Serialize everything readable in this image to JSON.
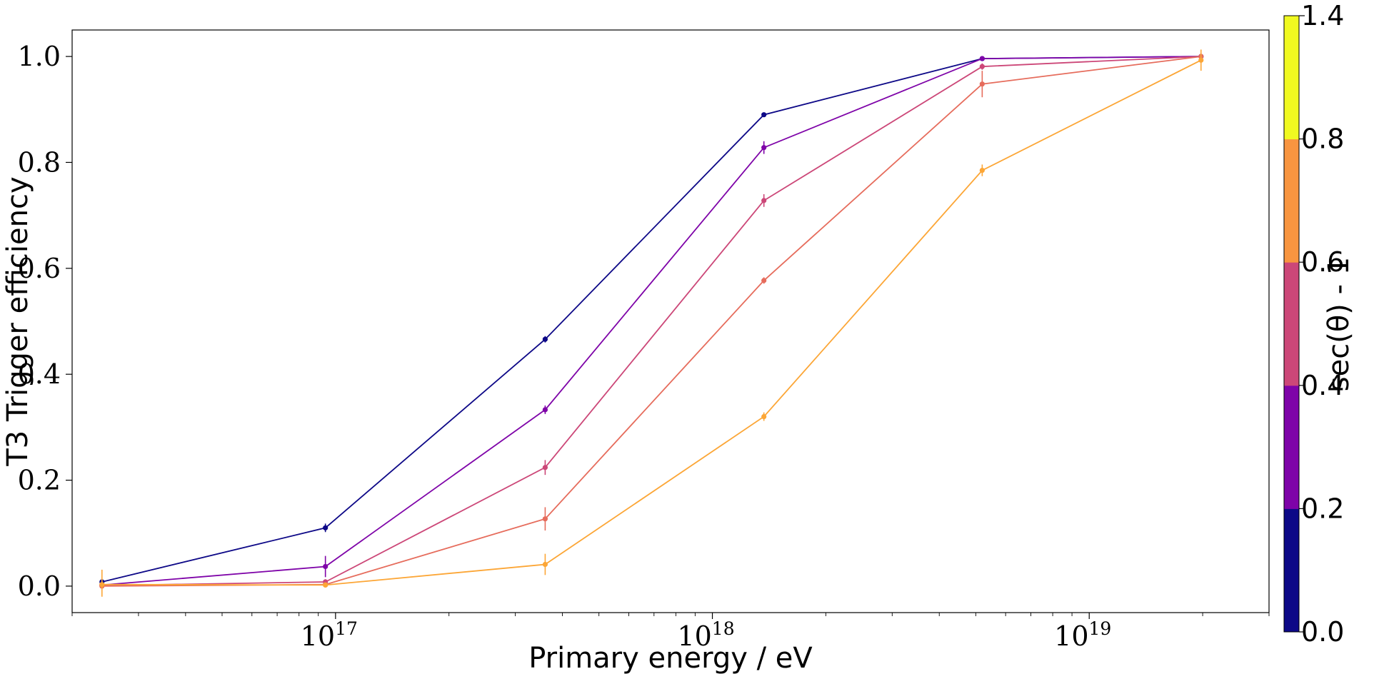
{
  "chart_data": {
    "type": "line",
    "title": "",
    "xlabel": "Primary energy / eV",
    "ylabel": "T3 Trigger efficiency",
    "xscale": "log",
    "xlim": [
      2e+16,
      3e+19
    ],
    "ylim": [
      -0.05,
      1.05
    ],
    "grid": false,
    "x": [
      2.4e+16,
      9.4e+16,
      3.6e+17,
      1.37e+18,
      5.2e+18,
      1.98e+19
    ],
    "x_ticks": [
      {
        "value": 1e+17,
        "base": "10",
        "exp": "17"
      },
      {
        "value": 1e+18,
        "base": "10",
        "exp": "18"
      },
      {
        "value": 1e+19,
        "base": "10",
        "exp": "19"
      }
    ],
    "y_ticks": [
      {
        "value": 0.0,
        "label": "0.0"
      },
      {
        "value": 0.2,
        "label": "0.2"
      },
      {
        "value": 0.4,
        "label": "0.4"
      },
      {
        "value": 0.6,
        "label": "0.6"
      },
      {
        "value": 0.8,
        "label": "0.8"
      },
      {
        "value": 1.0,
        "label": "1.0"
      }
    ],
    "series": [
      {
        "color": "#0d0887",
        "values": [
          0.008,
          0.11,
          0.466,
          0.89,
          0.996,
          1.0
        ],
        "errors": [
          0.003,
          0.008,
          0.006,
          0.004,
          0.002,
          0.001
        ]
      },
      {
        "color": "#7e03a8",
        "values": [
          0.002,
          0.037,
          0.333,
          0.828,
          0.996,
          1.0
        ],
        "errors": [
          0.002,
          0.02,
          0.008,
          0.012,
          0.003,
          0.001
        ]
      },
      {
        "color": "#cc4778",
        "values": [
          0.001,
          0.008,
          0.224,
          0.728,
          0.981,
          1.0
        ],
        "errors": [
          0.001,
          0.005,
          0.014,
          0.012,
          0.006,
          0.001
        ]
      },
      {
        "color": "#e66c5c",
        "values": [
          0.0,
          0.003,
          0.127,
          0.577,
          0.948,
          1.0
        ],
        "errors": [
          0.0,
          0.003,
          0.022,
          0.006,
          0.025,
          0.003
        ]
      },
      {
        "color": "#fca636",
        "values": [
          0.003,
          0.002,
          0.041,
          0.32,
          0.785,
          0.993
        ],
        "errors": [
          0.028,
          0.004,
          0.02,
          0.008,
          0.011,
          0.02
        ]
      }
    ],
    "colorbar": {
      "label": "sec(θ) - 1",
      "ticks": [
        "0.0",
        "0.2",
        "0.4",
        "0.6",
        "0.8",
        "1.4"
      ],
      "segments": [
        {
          "from": 0.0,
          "to": 0.2,
          "color": "#0d0887"
        },
        {
          "from": 0.2,
          "to": 0.4,
          "color": "#7e03a8"
        },
        {
          "from": 0.4,
          "to": 0.6,
          "color": "#cc4778"
        },
        {
          "from": 0.6,
          "to": 0.8,
          "color": "#f89540"
        },
        {
          "from": 0.8,
          "to": 1.4,
          "color": "#f0f921"
        }
      ]
    }
  }
}
